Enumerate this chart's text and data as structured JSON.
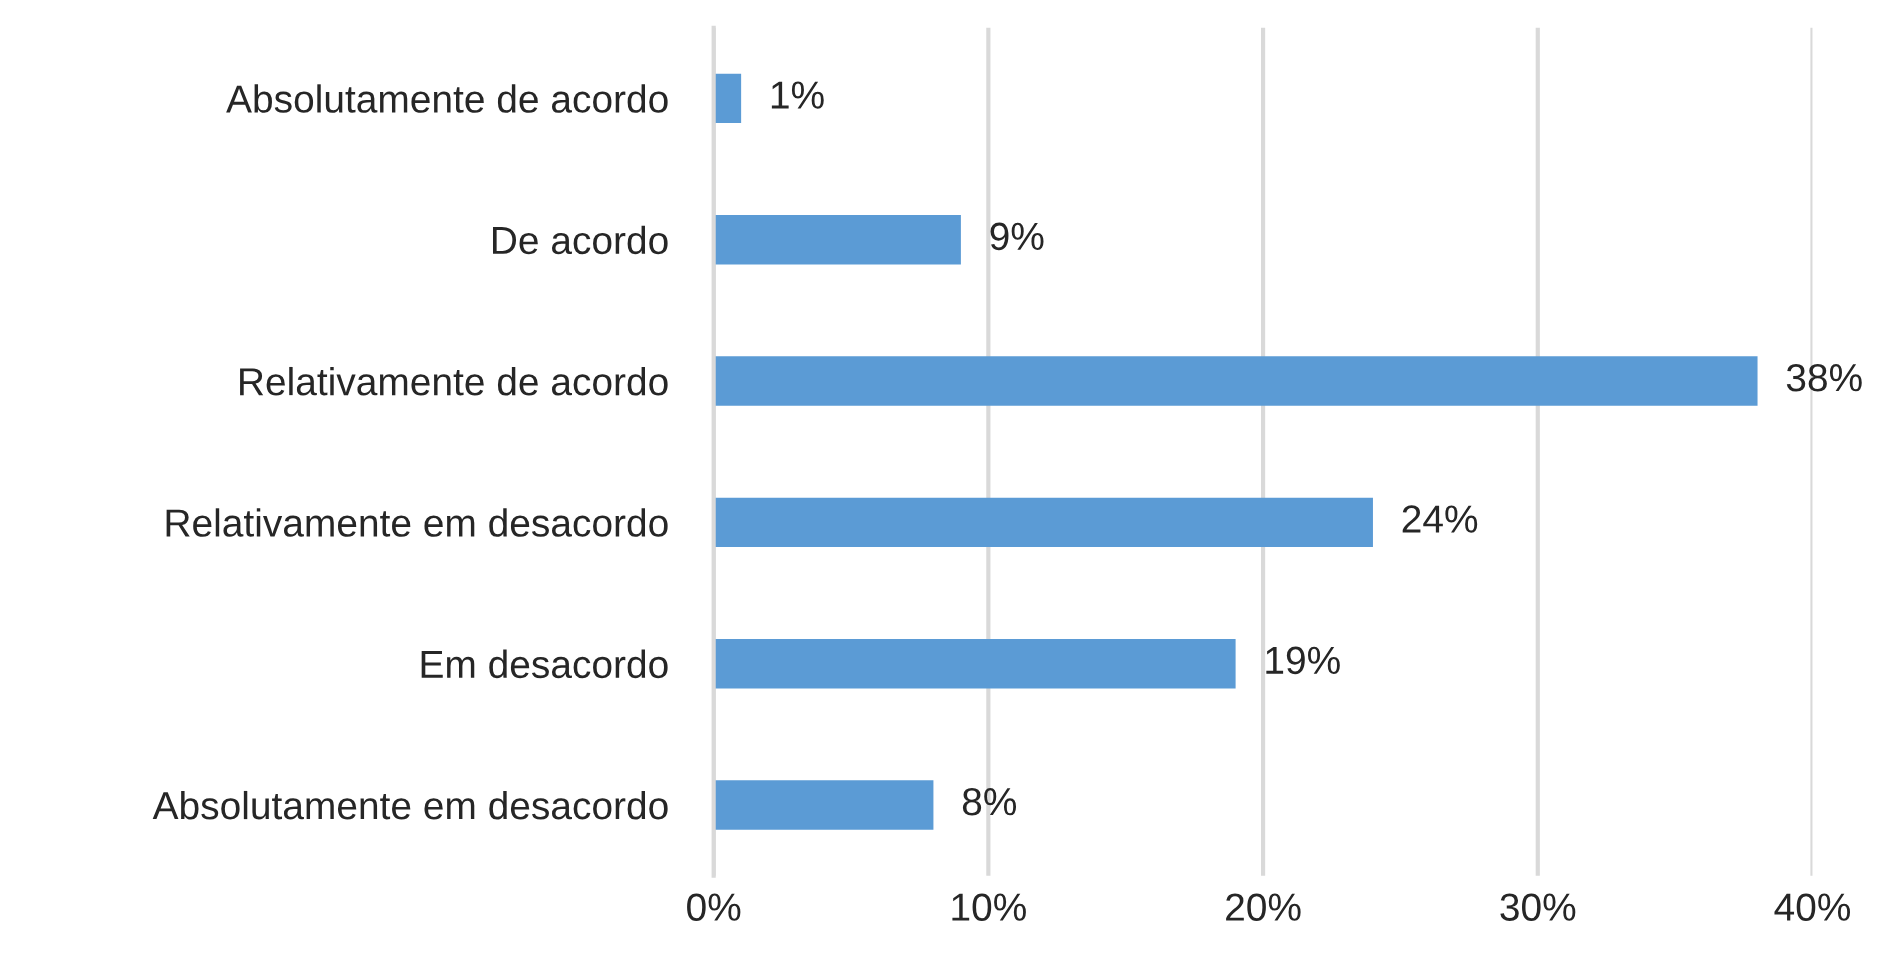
{
  "chart_data": {
    "type": "bar",
    "orientation": "horizontal",
    "categories": [
      "Absolutamente de acordo",
      "De acordo",
      "Relativamente de acordo",
      "Relativamente em desacordo",
      "Em desacordo",
      "Absolutamente em desacordo"
    ],
    "values": [
      1,
      9,
      38,
      24,
      19,
      8
    ],
    "color": "#5b9bd5",
    "value_labels": [
      "1%",
      "9%",
      "38%",
      "24%",
      "19%",
      "8%"
    ],
    "xlim": [
      0,
      40
    ],
    "xticks": [
      {
        "value": 0,
        "label": "0%"
      },
      {
        "value": 10,
        "label": "10%"
      },
      {
        "value": 20,
        "label": "20%"
      },
      {
        "value": 30,
        "label": "30%"
      },
      {
        "value": 40,
        "label": "40%"
      }
    ],
    "grid": "x",
    "legend": false
  }
}
